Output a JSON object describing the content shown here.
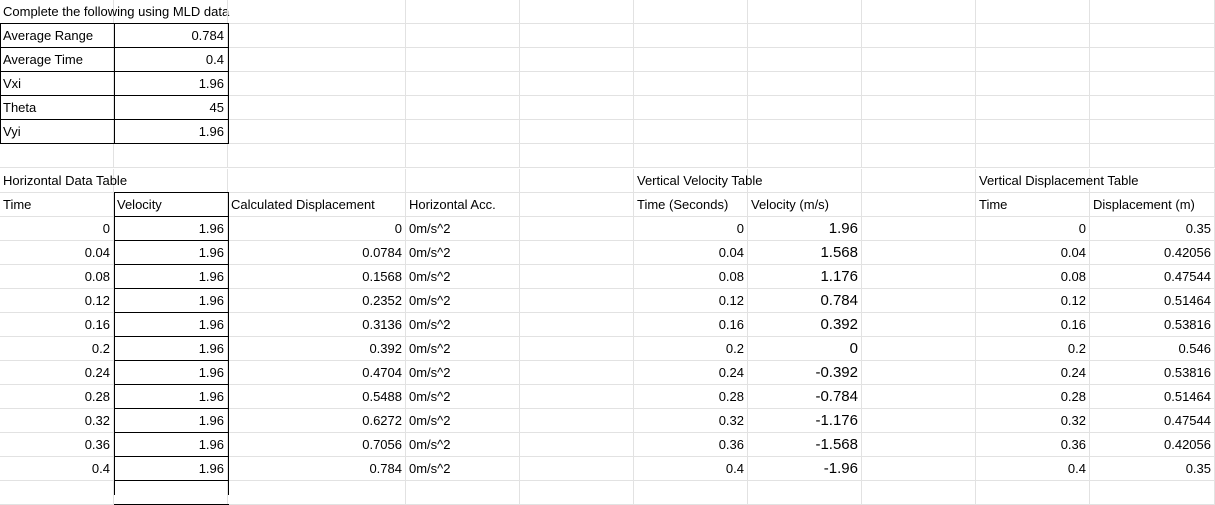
{
  "sheet": {
    "title": "Complete the following using MLD data",
    "summary": [
      {
        "label": "Average Range",
        "value": "0.784"
      },
      {
        "label": "Average Time",
        "value": "0.4"
      },
      {
        "label": "Vxi",
        "value": "1.96"
      },
      {
        "label": "Theta",
        "value": "45"
      },
      {
        "label": "Vyi",
        "value": "1.96"
      }
    ],
    "horizontal": {
      "title": "Horizontal Data Table",
      "headers": [
        "Time",
        "Velocity",
        "Calculated Displacement",
        "Horizontal Acc."
      ],
      "rows": [
        [
          "0",
          "1.96",
          "0",
          "0m/s^2"
        ],
        [
          "0.04",
          "1.96",
          "0.0784",
          "0m/s^2"
        ],
        [
          "0.08",
          "1.96",
          "0.1568",
          "0m/s^2"
        ],
        [
          "0.12",
          "1.96",
          "0.2352",
          "0m/s^2"
        ],
        [
          "0.16",
          "1.96",
          "0.3136",
          "0m/s^2"
        ],
        [
          "0.2",
          "1.96",
          "0.392",
          "0m/s^2"
        ],
        [
          "0.24",
          "1.96",
          "0.4704",
          "0m/s^2"
        ],
        [
          "0.28",
          "1.96",
          "0.5488",
          "0m/s^2"
        ],
        [
          "0.32",
          "1.96",
          "0.6272",
          "0m/s^2"
        ],
        [
          "0.36",
          "1.96",
          "0.7056",
          "0m/s^2"
        ],
        [
          "0.4",
          "1.96",
          "0.784",
          "0m/s^2"
        ]
      ]
    },
    "vertical_velocity": {
      "title": "Vertical Velocity Table",
      "headers": [
        "Time (Seconds)",
        "Velocity (m/s)"
      ],
      "rows": [
        [
          "0",
          "1.96"
        ],
        [
          "0.04",
          "1.568"
        ],
        [
          "0.08",
          "1.176"
        ],
        [
          "0.12",
          "0.784"
        ],
        [
          "0.16",
          "0.392"
        ],
        [
          "0.2",
          "0"
        ],
        [
          "0.24",
          "-0.392"
        ],
        [
          "0.28",
          "-0.784"
        ],
        [
          "0.32",
          "-1.176"
        ],
        [
          "0.36",
          "-1.568"
        ],
        [
          "0.4",
          "-1.96"
        ]
      ]
    },
    "vertical_displacement": {
      "title": "Vertical Displacement Table",
      "headers": [
        "Time",
        "Displacement (m)"
      ],
      "rows": [
        [
          "0",
          "0.35"
        ],
        [
          "0.04",
          "0.42056"
        ],
        [
          "0.08",
          "0.47544"
        ],
        [
          "0.12",
          "0.51464"
        ],
        [
          "0.16",
          "0.53816"
        ],
        [
          "0.2",
          "0.546"
        ],
        [
          "0.24",
          "0.53816"
        ],
        [
          "0.28",
          "0.51464"
        ],
        [
          "0.32",
          "0.47544"
        ],
        [
          "0.36",
          "0.42056"
        ],
        [
          "0.4",
          "0.35"
        ]
      ]
    }
  }
}
